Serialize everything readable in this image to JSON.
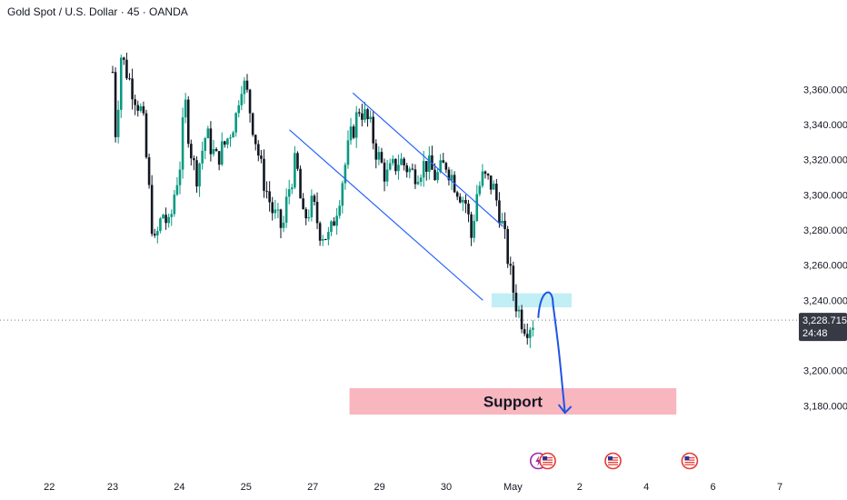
{
  "header": {
    "title": "Gold Spot / U.S. Dollar · 45 · OANDA"
  },
  "colors": {
    "up": "#089981",
    "down": "#131722",
    "channel": "#2962ff",
    "resistance_zone": "#b2ebf2",
    "support_zone": "#f7a9b4",
    "arrow": "#1e53e5",
    "price_tag": "#363a45"
  },
  "chart_data": {
    "type": "candlestick",
    "symbol": "Gold Spot / U.S. Dollar",
    "interval": "45",
    "source": "OANDA",
    "ylim": [
      3160,
      3385
    ],
    "y_ticks": [
      "3,180.000",
      "3,200.000",
      "3,240.000",
      "3,260.000",
      "3,280.000",
      "3,300.000",
      "3,320.000",
      "3,340.000",
      "3,360.000"
    ],
    "x_ticks": [
      "22",
      "23",
      "24",
      "25",
      "27",
      "29",
      "30",
      "May",
      "2",
      "4",
      "6",
      "7"
    ],
    "x_tick_values": [
      -0.95,
      0,
      1,
      2,
      3,
      4,
      5,
      6,
      7,
      8,
      9,
      10
    ],
    "current_price": "3,228.715",
    "countdown": "24:48",
    "current_price_value": 3228.715,
    "price_path": [
      [
        0.0,
        3370
      ],
      [
        0.05,
        3330
      ],
      [
        0.12,
        3380
      ],
      [
        0.3,
        3360
      ],
      [
        0.45,
        3345
      ],
      [
        0.55,
        3300
      ],
      [
        0.62,
        3270
      ],
      [
        0.75,
        3290
      ],
      [
        0.85,
        3280
      ],
      [
        0.92,
        3300
      ],
      [
        1.02,
        3320
      ],
      [
        1.08,
        3355
      ],
      [
        1.15,
        3330
      ],
      [
        1.25,
        3310
      ],
      [
        1.4,
        3335
      ],
      [
        1.55,
        3320
      ],
      [
        1.7,
        3330
      ],
      [
        1.85,
        3345
      ],
      [
        1.92,
        3365
      ],
      [
        2.0,
        3360
      ],
      [
        2.1,
        3340
      ],
      [
        2.25,
        3310
      ],
      [
        2.4,
        3290
      ],
      [
        2.55,
        3280
      ],
      [
        2.62,
        3300
      ],
      [
        2.75,
        3320
      ],
      [
        2.85,
        3285
      ],
      [
        3.0,
        3295
      ],
      [
        3.1,
        3280
      ],
      [
        3.25,
        3275
      ],
      [
        3.4,
        3300
      ],
      [
        3.55,
        3330
      ],
      [
        3.7,
        3350
      ],
      [
        3.85,
        3340
      ],
      [
        3.95,
        3325
      ],
      [
        4.1,
        3310
      ],
      [
        4.3,
        3320
      ],
      [
        4.5,
        3312
      ],
      [
        4.7,
        3318
      ],
      [
        4.85,
        3310
      ],
      [
        5.0,
        3318
      ],
      [
        5.15,
        3305
      ],
      [
        5.3,
        3295
      ],
      [
        5.38,
        3275
      ],
      [
        5.45,
        3300
      ],
      [
        5.55,
        3310
      ],
      [
        5.7,
        3305
      ],
      [
        5.8,
        3290
      ],
      [
        5.9,
        3270
      ],
      [
        5.98,
        3250
      ],
      [
        6.05,
        3238
      ],
      [
        6.12,
        3230
      ],
      [
        6.2,
        3225
      ],
      [
        6.3,
        3228
      ]
    ],
    "annotations": {
      "channel_upper": [
        [
          3.6,
          3358
        ],
        [
          5.85,
          3282
        ]
      ],
      "channel_lower": [
        [
          2.65,
          3337
        ],
        [
          5.55,
          3240
        ]
      ],
      "resistance_zone": {
        "x": [
          5.68,
          6.88
        ],
        "y": [
          3236,
          3244
        ]
      },
      "support_zone": {
        "x": [
          3.55,
          8.45
        ],
        "y": [
          3175,
          3190
        ],
        "label": "Support"
      },
      "projection": [
        [
          6.38,
          3230
        ],
        [
          6.5,
          3242
        ],
        [
          6.6,
          3238
        ],
        [
          6.78,
          3176
        ]
      ]
    },
    "event_markers": [
      {
        "x": 6.38,
        "icon": "lightning-icon",
        "color": "#9c27b0"
      },
      {
        "x": 6.52,
        "icon": "us-flag-icon",
        "color": "#e53935"
      },
      {
        "x": 7.5,
        "icon": "us-flag-icon",
        "color": "#e53935"
      },
      {
        "x": 8.65,
        "icon": "us-flag-icon",
        "color": "#e53935"
      }
    ],
    "grid": false,
    "legend": "none"
  }
}
